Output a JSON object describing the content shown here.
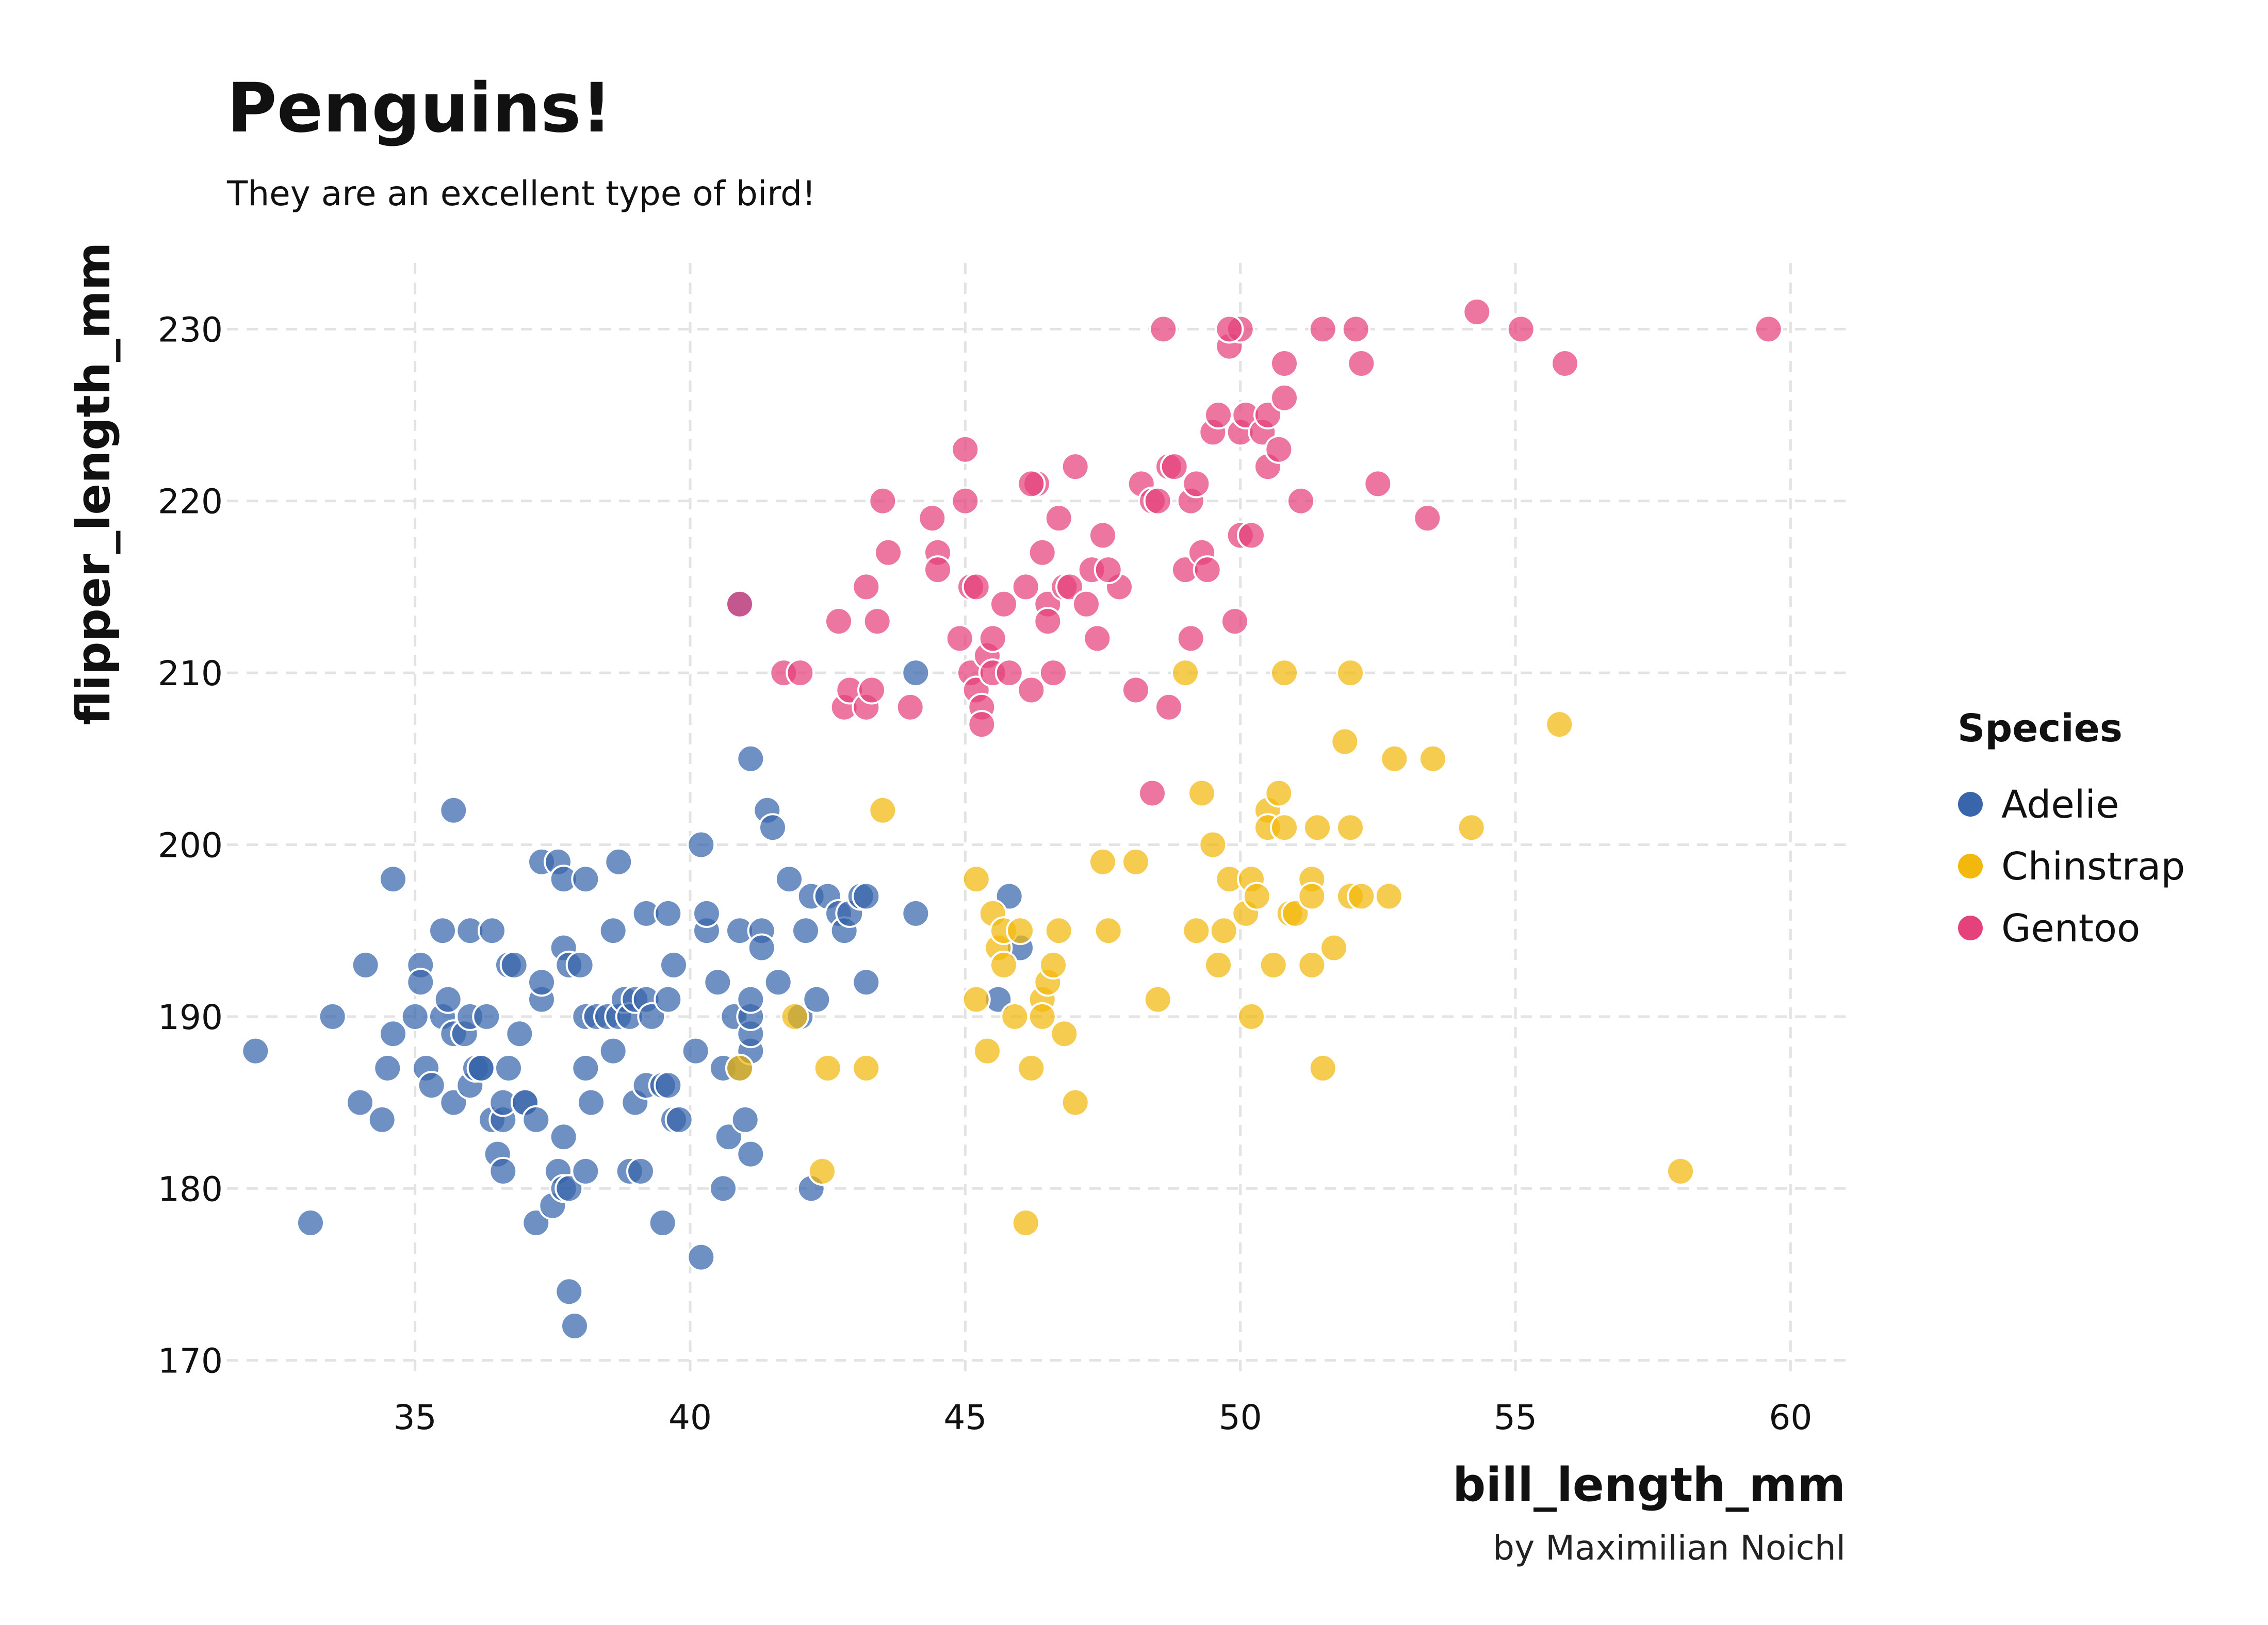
{
  "chart_data": {
    "type": "scatter",
    "title": "Penguins!",
    "subtitle": "They are an excellent type of bird!",
    "caption": "by Maximilian Noichl",
    "xlabel": "bill_length_mm",
    "ylabel": "flipper_length_mm",
    "xlim": [
      31,
      61
    ],
    "ylim": [
      169,
      234
    ],
    "xticks": [
      35,
      40,
      45,
      50,
      55,
      60
    ],
    "yticks": [
      170,
      180,
      190,
      200,
      210,
      220,
      230
    ],
    "grid": true,
    "legend": {
      "title": "Species",
      "position": "right"
    },
    "series": [
      {
        "name": "Adelie",
        "color": "#3865AB",
        "points": [
          [
            32.1,
            188
          ],
          [
            33.1,
            178
          ],
          [
            33.5,
            190
          ],
          [
            34.0,
            185
          ],
          [
            34.1,
            193
          ],
          [
            34.4,
            184
          ],
          [
            34.5,
            187
          ],
          [
            34.6,
            198
          ],
          [
            34.6,
            189
          ],
          [
            35.0,
            190
          ],
          [
            35.1,
            193
          ],
          [
            35.1,
            192
          ],
          [
            35.2,
            187
          ],
          [
            35.3,
            186
          ],
          [
            35.5,
            190
          ],
          [
            35.5,
            195
          ],
          [
            35.6,
            191
          ],
          [
            35.7,
            202
          ],
          [
            35.7,
            189
          ],
          [
            35.7,
            185
          ],
          [
            35.9,
            189
          ],
          [
            36.0,
            190
          ],
          [
            36.0,
            186
          ],
          [
            36.0,
            195
          ],
          [
            36.1,
            187
          ],
          [
            36.2,
            187
          ],
          [
            36.2,
            187
          ],
          [
            36.3,
            190
          ],
          [
            36.4,
            195
          ],
          [
            36.4,
            184
          ],
          [
            36.5,
            182
          ],
          [
            36.6,
            184
          ],
          [
            36.6,
            181
          ],
          [
            36.6,
            185
          ],
          [
            36.7,
            193
          ],
          [
            36.7,
            187
          ],
          [
            36.8,
            193
          ],
          [
            36.9,
            189
          ],
          [
            37.0,
            185
          ],
          [
            37.0,
            185
          ],
          [
            37.2,
            178
          ],
          [
            37.2,
            184
          ],
          [
            37.3,
            191
          ],
          [
            37.3,
            192
          ],
          [
            37.3,
            199
          ],
          [
            37.5,
            179
          ],
          [
            37.6,
            199
          ],
          [
            37.6,
            181
          ],
          [
            37.7,
            180
          ],
          [
            37.7,
            198
          ],
          [
            37.7,
            194
          ],
          [
            37.7,
            183
          ],
          [
            37.8,
            180
          ],
          [
            37.8,
            174
          ],
          [
            37.8,
            193
          ],
          [
            37.9,
            172
          ],
          [
            38.0,
            193
          ],
          [
            38.1,
            181
          ],
          [
            38.1,
            190
          ],
          [
            38.1,
            187
          ],
          [
            38.1,
            198
          ],
          [
            38.2,
            185
          ],
          [
            38.3,
            190
          ],
          [
            38.5,
            190
          ],
          [
            38.6,
            188
          ],
          [
            38.6,
            195
          ],
          [
            38.7,
            190
          ],
          [
            38.7,
            199
          ],
          [
            38.8,
            191
          ],
          [
            38.9,
            190
          ],
          [
            38.9,
            181
          ],
          [
            39.0,
            185
          ],
          [
            39.0,
            191
          ],
          [
            39.1,
            181
          ],
          [
            39.2,
            186
          ],
          [
            39.2,
            196
          ],
          [
            39.2,
            191
          ],
          [
            39.3,
            190
          ],
          [
            39.5,
            178
          ],
          [
            39.5,
            186
          ],
          [
            39.6,
            186
          ],
          [
            39.6,
            196
          ],
          [
            39.6,
            191
          ],
          [
            39.7,
            184
          ],
          [
            39.7,
            193
          ],
          [
            39.8,
            184
          ],
          [
            40.1,
            188
          ],
          [
            40.2,
            176
          ],
          [
            40.2,
            200
          ],
          [
            40.3,
            195
          ],
          [
            40.3,
            196
          ],
          [
            40.5,
            192
          ],
          [
            40.6,
            180
          ],
          [
            40.6,
            187
          ],
          [
            40.7,
            183
          ],
          [
            40.8,
            190
          ],
          [
            40.9,
            195
          ],
          [
            40.9,
            187
          ],
          [
            41.0,
            184
          ],
          [
            41.1,
            182
          ],
          [
            41.1,
            188
          ],
          [
            41.1,
            189
          ],
          [
            41.1,
            190
          ],
          [
            41.1,
            191
          ],
          [
            41.1,
            205
          ],
          [
            41.3,
            195
          ],
          [
            41.3,
            194
          ],
          [
            41.4,
            202
          ],
          [
            41.5,
            201
          ],
          [
            41.6,
            192
          ],
          [
            41.8,
            198
          ],
          [
            42.0,
            190
          ],
          [
            42.1,
            195
          ],
          [
            42.2,
            180
          ],
          [
            42.2,
            197
          ],
          [
            42.3,
            191
          ],
          [
            42.5,
            197
          ],
          [
            42.7,
            196
          ],
          [
            42.8,
            195
          ],
          [
            42.9,
            196
          ],
          [
            43.1,
            197
          ],
          [
            43.2,
            192
          ],
          [
            43.2,
            197
          ],
          [
            44.1,
            196
          ],
          [
            44.1,
            210
          ],
          [
            45.6,
            191
          ],
          [
            45.8,
            197
          ],
          [
            46.0,
            194
          ],
          [
            40.9,
            214
          ]
        ]
      },
      {
        "name": "Chinstrap",
        "color": "#F2B90C",
        "points": [
          [
            40.9,
            187
          ],
          [
            41.9,
            190
          ],
          [
            42.4,
            181
          ],
          [
            42.5,
            187
          ],
          [
            43.2,
            187
          ],
          [
            43.5,
            202
          ],
          [
            45.2,
            191
          ],
          [
            45.2,
            198
          ],
          [
            45.4,
            188
          ],
          [
            45.5,
            196
          ],
          [
            45.6,
            194
          ],
          [
            45.7,
            195
          ],
          [
            45.7,
            193
          ],
          [
            45.9,
            190
          ],
          [
            46.0,
            195
          ],
          [
            46.1,
            178
          ],
          [
            46.2,
            187
          ],
          [
            46.4,
            191
          ],
          [
            46.4,
            190
          ],
          [
            46.5,
            192
          ],
          [
            46.6,
            193
          ],
          [
            46.7,
            195
          ],
          [
            46.8,
            189
          ],
          [
            47.0,
            185
          ],
          [
            47.5,
            199
          ],
          [
            47.6,
            195
          ],
          [
            48.1,
            199
          ],
          [
            48.5,
            191
          ],
          [
            49.0,
            210
          ],
          [
            49.2,
            195
          ],
          [
            49.3,
            203
          ],
          [
            49.5,
            200
          ],
          [
            49.6,
            193
          ],
          [
            49.7,
            195
          ],
          [
            49.8,
            198
          ],
          [
            50.1,
            196
          ],
          [
            50.2,
            190
          ],
          [
            50.2,
            198
          ],
          [
            50.3,
            197
          ],
          [
            50.5,
            202
          ],
          [
            50.5,
            201
          ],
          [
            50.6,
            193
          ],
          [
            50.7,
            203
          ],
          [
            50.8,
            201
          ],
          [
            50.8,
            210
          ],
          [
            50.9,
            196
          ],
          [
            51.0,
            196
          ],
          [
            51.3,
            198
          ],
          [
            51.3,
            197
          ],
          [
            51.3,
            193
          ],
          [
            51.4,
            201
          ],
          [
            51.5,
            187
          ],
          [
            51.7,
            194
          ],
          [
            51.9,
            206
          ],
          [
            52.0,
            201
          ],
          [
            52.0,
            197
          ],
          [
            52.0,
            210
          ],
          [
            52.2,
            197
          ],
          [
            52.7,
            197
          ],
          [
            52.8,
            205
          ],
          [
            53.5,
            205
          ],
          [
            54.2,
            201
          ],
          [
            55.8,
            207
          ],
          [
            58.0,
            181
          ]
        ]
      },
      {
        "name": "Gentoo",
        "color": "#E5417A",
        "points": [
          [
            40.9,
            214
          ],
          [
            41.7,
            210
          ],
          [
            42.0,
            210
          ],
          [
            42.7,
            213
          ],
          [
            42.8,
            208
          ],
          [
            42.9,
            209
          ],
          [
            43.2,
            208
          ],
          [
            43.3,
            209
          ],
          [
            43.4,
            213
          ],
          [
            43.5,
            220
          ],
          [
            43.6,
            217
          ],
          [
            44.0,
            208
          ],
          [
            44.4,
            219
          ],
          [
            44.5,
            217
          ],
          [
            44.5,
            216
          ],
          [
            45.0,
            220
          ],
          [
            45.1,
            210
          ],
          [
            45.1,
            215
          ],
          [
            45.2,
            215
          ],
          [
            45.2,
            209
          ],
          [
            45.3,
            208
          ],
          [
            45.4,
            211
          ],
          [
            45.5,
            210
          ],
          [
            45.5,
            212
          ],
          [
            45.7,
            214
          ],
          [
            45.8,
            210
          ],
          [
            46.1,
            215
          ],
          [
            46.2,
            209
          ],
          [
            46.3,
            221
          ],
          [
            46.4,
            217
          ],
          [
            46.5,
            214
          ],
          [
            46.6,
            210
          ],
          [
            46.7,
            219
          ],
          [
            46.8,
            215
          ],
          [
            46.9,
            215
          ],
          [
            47.2,
            214
          ],
          [
            47.3,
            216
          ],
          [
            47.4,
            212
          ],
          [
            47.5,
            218
          ],
          [
            47.8,
            215
          ],
          [
            48.1,
            209
          ],
          [
            48.2,
            221
          ],
          [
            48.4,
            220
          ],
          [
            48.5,
            220
          ],
          [
            48.6,
            230
          ],
          [
            48.7,
            208
          ],
          [
            48.7,
            222
          ],
          [
            48.8,
            222
          ],
          [
            49.0,
            216
          ],
          [
            49.1,
            220
          ],
          [
            49.2,
            221
          ],
          [
            49.3,
            217
          ],
          [
            49.4,
            216
          ],
          [
            49.5,
            224
          ],
          [
            49.6,
            225
          ],
          [
            49.8,
            229
          ],
          [
            49.9,
            213
          ],
          [
            50.0,
            218
          ],
          [
            50.0,
            224
          ],
          [
            50.1,
            225
          ],
          [
            50.2,
            218
          ],
          [
            50.4,
            224
          ],
          [
            50.5,
            222
          ],
          [
            50.5,
            225
          ],
          [
            50.7,
            223
          ],
          [
            50.8,
            228
          ],
          [
            51.1,
            220
          ],
          [
            51.5,
            230
          ],
          [
            52.1,
            230
          ],
          [
            52.2,
            228
          ],
          [
            52.5,
            221
          ],
          [
            53.4,
            219
          ],
          [
            54.3,
            231
          ],
          [
            55.1,
            230
          ],
          [
            55.9,
            228
          ],
          [
            59.6,
            230
          ],
          [
            48.4,
            203
          ],
          [
            49.1,
            212
          ],
          [
            46.2,
            221
          ],
          [
            45.0,
            223
          ],
          [
            47.0,
            222
          ],
          [
            44.9,
            212
          ],
          [
            50.0,
            230
          ],
          [
            50.8,
            226
          ],
          [
            49.8,
            230
          ],
          [
            43.2,
            215
          ],
          [
            45.3,
            207
          ],
          [
            46.5,
            213
          ],
          [
            47.6,
            216
          ]
        ]
      }
    ]
  }
}
